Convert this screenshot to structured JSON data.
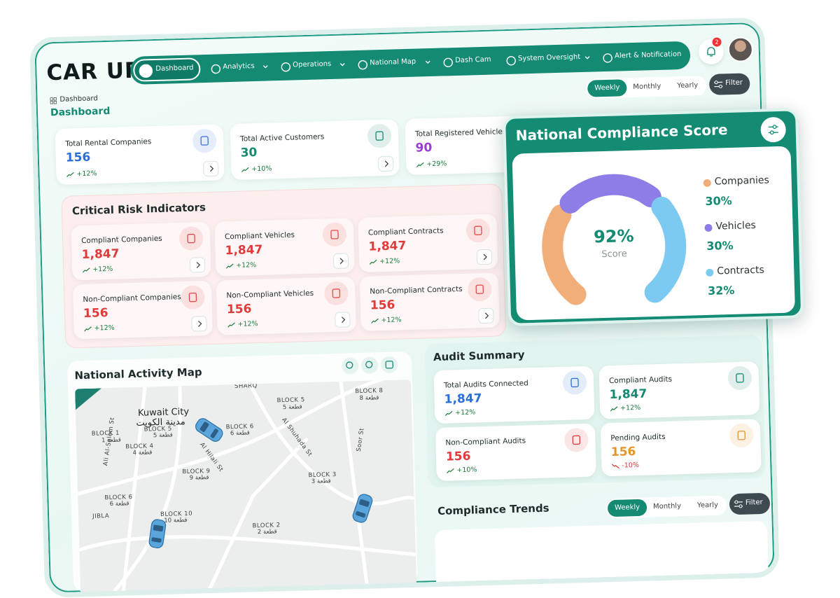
{
  "header": {
    "logo": "CAR UP",
    "nav": [
      "Dashboard",
      "Analytics",
      "Operations",
      "National Map",
      "Dash Cam",
      "System Oversight",
      "Alert & Notification"
    ],
    "notification_count": "2"
  },
  "page": {
    "breadcrumb": "Dashboard",
    "title": "Dashboard",
    "periods": [
      "Weekly",
      "Monthly",
      "Yearly"
    ],
    "filter": "Filter"
  },
  "kpis": [
    {
      "label": "Total Rental Companies",
      "value": "156",
      "change": "+12%"
    },
    {
      "label": "Total Active Customers",
      "value": "30",
      "change": "+10%"
    },
    {
      "label": "Total Registered Vehicles",
      "value": "90",
      "change": "+29%"
    }
  ],
  "risk": {
    "title": "Critical Risk Indicators",
    "cards": [
      {
        "label": "Compliant Companies",
        "value": "1,847",
        "change": "+12%"
      },
      {
        "label": "Compliant Vehicles",
        "value": "1,847",
        "change": "+12%"
      },
      {
        "label": "Compliant Contracts",
        "value": "1,847",
        "change": "+12%"
      },
      {
        "label": "Non-Compliant Companies",
        "value": "156",
        "change": "+12%"
      },
      {
        "label": "Non-Compliant Vehicles",
        "value": "156",
        "change": "+12%"
      },
      {
        "label": "Non-Compliant Contracts",
        "value": "156",
        "change": "+12%"
      }
    ]
  },
  "map": {
    "title": "National Activity Map",
    "labels": [
      "Kuwait City",
      "مدينة الكويت",
      "BLOCK 1",
      "قطعة 1",
      "BLOCK 5",
      "قطعة 5",
      "BLOCK 4",
      "قطعة 4",
      "BLOCK 6",
      "6 قطعة",
      "BLOCK 5",
      "قطعة 5",
      "BLOCK 8",
      "قطعة 8",
      "BLOCK 9",
      "قطعة 9",
      "BLOCK 3",
      "3 قطعة",
      "BLOCK 6",
      "قطعة 6",
      "BLOCK 10",
      "قطعة 10",
      "BLOCK 2",
      "قطعة 2",
      "SHARQ",
      "JIBLA",
      "Al Hilali St",
      "Ali Al-Salem St",
      "Soor St",
      "Al Shuhada St"
    ]
  },
  "audit": {
    "title": "Audit Summary",
    "cards": [
      {
        "label": "Total Audits Connected",
        "value": "1,847",
        "change": "+12%"
      },
      {
        "label": "Compliant Audits",
        "value": "1,847",
        "change": "+12%"
      },
      {
        "label": "Non-Compliant Audits",
        "value": "156",
        "change": "+10%"
      },
      {
        "label": "Pending Audits",
        "value": "156",
        "change": "-10%"
      }
    ]
  },
  "trends": {
    "title": "Compliance Trends",
    "periods": [
      "Weekly",
      "Monthly",
      "Yearly"
    ],
    "filter": "Filter"
  },
  "compliance": {
    "title": "National Compliance Score",
    "score": "92%",
    "score_label": "Score",
    "segments": [
      {
        "name": "Companies",
        "value": 30,
        "label": "30%",
        "color": "#f2ae78"
      },
      {
        "name": "Vehicles",
        "value": 30,
        "label": "30%",
        "color": "#8e7de6"
      },
      {
        "name": "Contracts",
        "value": 32,
        "label": "32%",
        "color": "#7ccaf2"
      }
    ]
  }
}
